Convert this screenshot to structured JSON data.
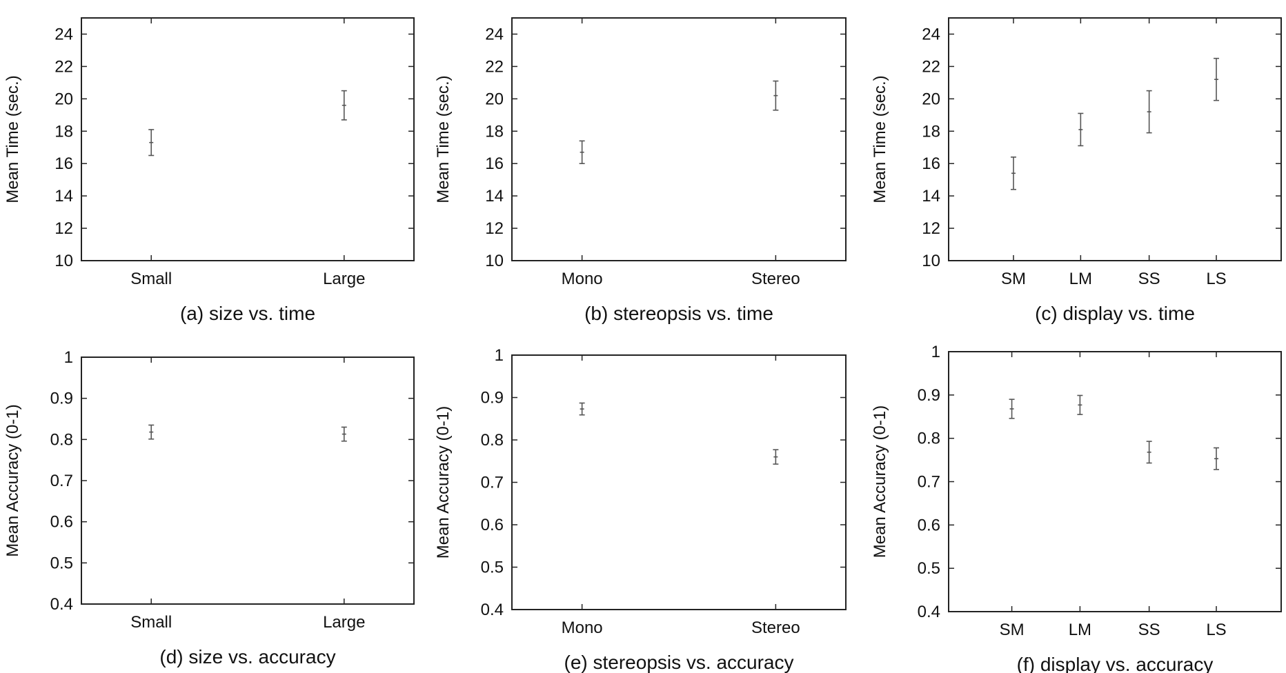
{
  "chart_data": [
    {
      "type": "scatter",
      "caption": "(a) size vs. time",
      "ylabel": "Mean Time (sec.)",
      "ylim": [
        10,
        25
      ],
      "yticks": [
        10,
        12,
        14,
        16,
        18,
        20,
        22,
        24
      ],
      "categories": [
        "Small",
        "Large"
      ],
      "values": [
        17.3,
        19.6
      ],
      "errors": [
        0.8,
        0.9
      ],
      "grid": false
    },
    {
      "type": "scatter",
      "caption": "(b) stereopsis vs. time",
      "ylabel": "Mean Time (sec.)",
      "ylim": [
        10,
        25
      ],
      "yticks": [
        10,
        12,
        14,
        16,
        18,
        20,
        22,
        24
      ],
      "categories": [
        "Mono",
        "Stereo"
      ],
      "values": [
        16.7,
        20.2
      ],
      "errors": [
        0.7,
        0.9
      ],
      "grid": false
    },
    {
      "type": "scatter",
      "caption": "(c) display vs. time",
      "ylabel": "Mean Time (sec.)",
      "ylim": [
        10,
        25
      ],
      "yticks": [
        10,
        12,
        14,
        16,
        18,
        20,
        22,
        24
      ],
      "categories": [
        "SM",
        "LM",
        "SS",
        "LS"
      ],
      "values": [
        15.4,
        18.1,
        19.2,
        21.2
      ],
      "errors": [
        1.0,
        1.0,
        1.3,
        1.3
      ],
      "grid": false
    },
    {
      "type": "scatter",
      "caption": "(d) size vs. accuracy",
      "ylabel": "Mean Accuracy (0-1)",
      "ylim": [
        0.4,
        1
      ],
      "yticks": [
        0.4,
        0.5,
        0.6,
        0.7,
        0.8,
        0.9,
        1
      ],
      "ytick_labels": [
        "0.4",
        "0.5",
        "0.6",
        "0.7",
        "0.8",
        "0.9",
        "1"
      ],
      "categories": [
        "Small",
        "Large"
      ],
      "values": [
        0.818,
        0.813
      ],
      "errors": [
        0.017,
        0.017
      ],
      "grid": false
    },
    {
      "type": "scatter",
      "caption": "(e) stereopsis vs. accuracy",
      "ylabel": "Mean Accuracy (0-1)",
      "ylim": [
        0.4,
        1
      ],
      "yticks": [
        0.4,
        0.5,
        0.6,
        0.7,
        0.8,
        0.9,
        1
      ],
      "ytick_labels": [
        "0.4",
        "0.5",
        "0.6",
        "0.7",
        "0.8",
        "0.9",
        "1"
      ],
      "categories": [
        "Mono",
        "Stereo"
      ],
      "values": [
        0.873,
        0.76
      ],
      "errors": [
        0.014,
        0.017
      ],
      "grid": false
    },
    {
      "type": "scatter",
      "caption": "(f) display vs. accuracy",
      "ylabel": "Mean Accuracy (0-1)",
      "ylim": [
        0.4,
        1
      ],
      "yticks": [
        0.4,
        0.5,
        0.6,
        0.7,
        0.8,
        0.9,
        1
      ],
      "ytick_labels": [
        "0.4",
        "0.5",
        "0.6",
        "0.7",
        "0.8",
        "0.9",
        "1"
      ],
      "categories": [
        "SM",
        "LM",
        "SS",
        "LS"
      ],
      "values": [
        0.868,
        0.877,
        0.768,
        0.753
      ],
      "errors": [
        0.022,
        0.022,
        0.025,
        0.025
      ],
      "grid": false
    }
  ]
}
